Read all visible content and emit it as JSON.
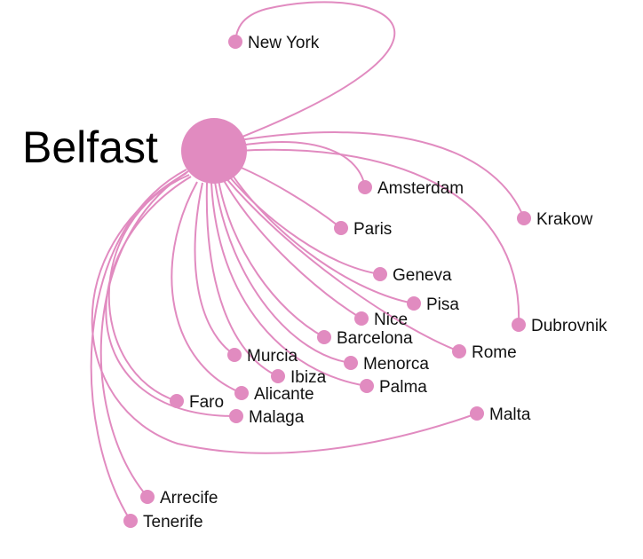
{
  "hub": {
    "name": "Belfast",
    "icon": "hub-node-icon"
  },
  "colors": {
    "route": "#e18bc0",
    "node": "#e18bc0",
    "text": "#111111"
  },
  "destinations": [
    {
      "name": "New York",
      "icon": "destination-node-icon"
    },
    {
      "name": "Amsterdam",
      "icon": "destination-node-icon"
    },
    {
      "name": "Krakow",
      "icon": "destination-node-icon"
    },
    {
      "name": "Paris",
      "icon": "destination-node-icon"
    },
    {
      "name": "Geneva",
      "icon": "destination-node-icon"
    },
    {
      "name": "Pisa",
      "icon": "destination-node-icon"
    },
    {
      "name": "Nice",
      "icon": "destination-node-icon"
    },
    {
      "name": "Dubrovnik",
      "icon": "destination-node-icon"
    },
    {
      "name": "Barcelona",
      "icon": "destination-node-icon"
    },
    {
      "name": "Rome",
      "icon": "destination-node-icon"
    },
    {
      "name": "Murcia",
      "icon": "destination-node-icon"
    },
    {
      "name": "Menorca",
      "icon": "destination-node-icon"
    },
    {
      "name": "Ibiza",
      "icon": "destination-node-icon"
    },
    {
      "name": "Palma",
      "icon": "destination-node-icon"
    },
    {
      "name": "Alicante",
      "icon": "destination-node-icon"
    },
    {
      "name": "Faro",
      "icon": "destination-node-icon"
    },
    {
      "name": "Malaga",
      "icon": "destination-node-icon"
    },
    {
      "name": "Malta",
      "icon": "destination-node-icon"
    },
    {
      "name": "Arrecife",
      "icon": "destination-node-icon"
    },
    {
      "name": "Tenerife",
      "icon": "destination-node-icon"
    }
  ]
}
